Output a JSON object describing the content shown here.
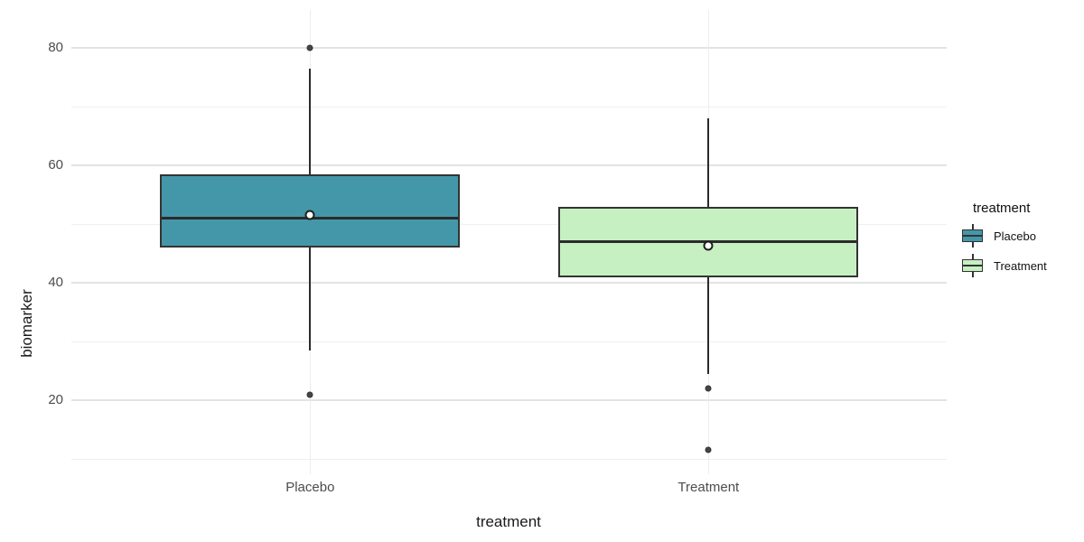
{
  "figure": {
    "y_axis_title": "biomarker",
    "x_axis_title": "treatment"
  },
  "legend": {
    "title": "treatment",
    "entries": [
      {
        "label": "Placebo",
        "color": "#4497a8"
      },
      {
        "label": "Treatment",
        "color": "#c7f0c2"
      }
    ]
  },
  "chart_data": {
    "type": "boxplot",
    "title": "",
    "xlabel": "treatment",
    "ylabel": "biomarker",
    "categories": [
      "Placebo",
      "Treatment"
    ],
    "y_ticks": [
      20,
      40,
      60,
      80
    ],
    "y_minor_ticks": [
      10,
      30,
      50,
      70
    ],
    "ylim": [
      7.4,
      86.5
    ],
    "grid": true,
    "legend_position": "right",
    "colors": {
      "border": "#333333",
      "grid_major": "#e3e3e3",
      "grid_minor": "#f0f0f0",
      "outlier": "#464646"
    },
    "series": [
      {
        "name": "Placebo",
        "fill": "#4497a8",
        "lower_whisker": 28.5,
        "q1": 46,
        "median": 51,
        "q3": 58.5,
        "upper_whisker": 76.5,
        "mean": 51.5,
        "outliers": [
          80,
          21
        ]
      },
      {
        "name": "Treatment",
        "fill": "#c7f0c2",
        "lower_whisker": 24.5,
        "q1": 41,
        "median": 47,
        "q3": 53,
        "upper_whisker": 68,
        "mean": 46.3,
        "outliers": [
          22,
          11.5
        ]
      }
    ]
  }
}
